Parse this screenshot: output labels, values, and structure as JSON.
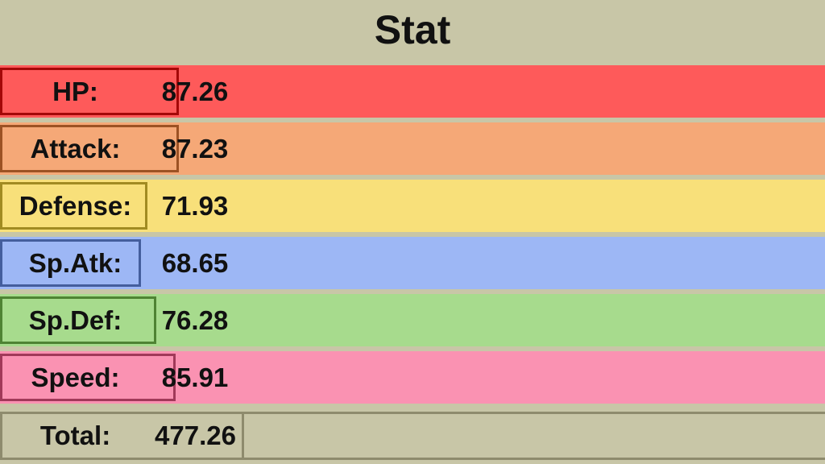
{
  "header": {
    "title": "Stat"
  },
  "chart_data": {
    "type": "bar",
    "title": "Stat",
    "categories": [
      "HP:",
      "Attack:",
      "Defense:",
      "Sp.Atk:",
      "Sp.Def:",
      "Speed:"
    ],
    "values": [
      87.26,
      87.23,
      71.93,
      68.65,
      76.28,
      85.91
    ],
    "value_labels": [
      "87.26",
      "87.23",
      "71.93",
      "68.65",
      "76.28",
      "85.91"
    ],
    "xlim": [
      0,
      255
    ],
    "orientation": "horizontal",
    "colors": {
      "hp": {
        "row": "#fe5a5a",
        "fill": "#fe0000",
        "label_bg": "#fe5a5a",
        "border": "#a40808"
      },
      "attack": {
        "row": "#f5a877",
        "fill": "#ee7f31",
        "label_bg": "#f5a877",
        "border": "#9c5224"
      },
      "defense": {
        "row": "#f8e07a",
        "fill": "#f8d030",
        "label_bg": "#f8e07a",
        "border": "#a18b22"
      },
      "spatk": {
        "row": "#9db7f5",
        "fill": "#6890f0",
        "label_bg": "#9db7f5",
        "border": "#445e9d"
      },
      "spdef": {
        "row": "#a7db8d",
        "fill": "#78c850",
        "label_bg": "#a7db8d",
        "border": "#4f8334"
      },
      "speed": {
        "row": "#fa92b2",
        "fill": "#f85888",
        "label_bg": "#fa92b2",
        "border": "#a13959"
      },
      "background": "#c8c6a7",
      "total_border": "#8e8b6d"
    }
  },
  "total": {
    "label": "Total:",
    "value": "477.26"
  }
}
